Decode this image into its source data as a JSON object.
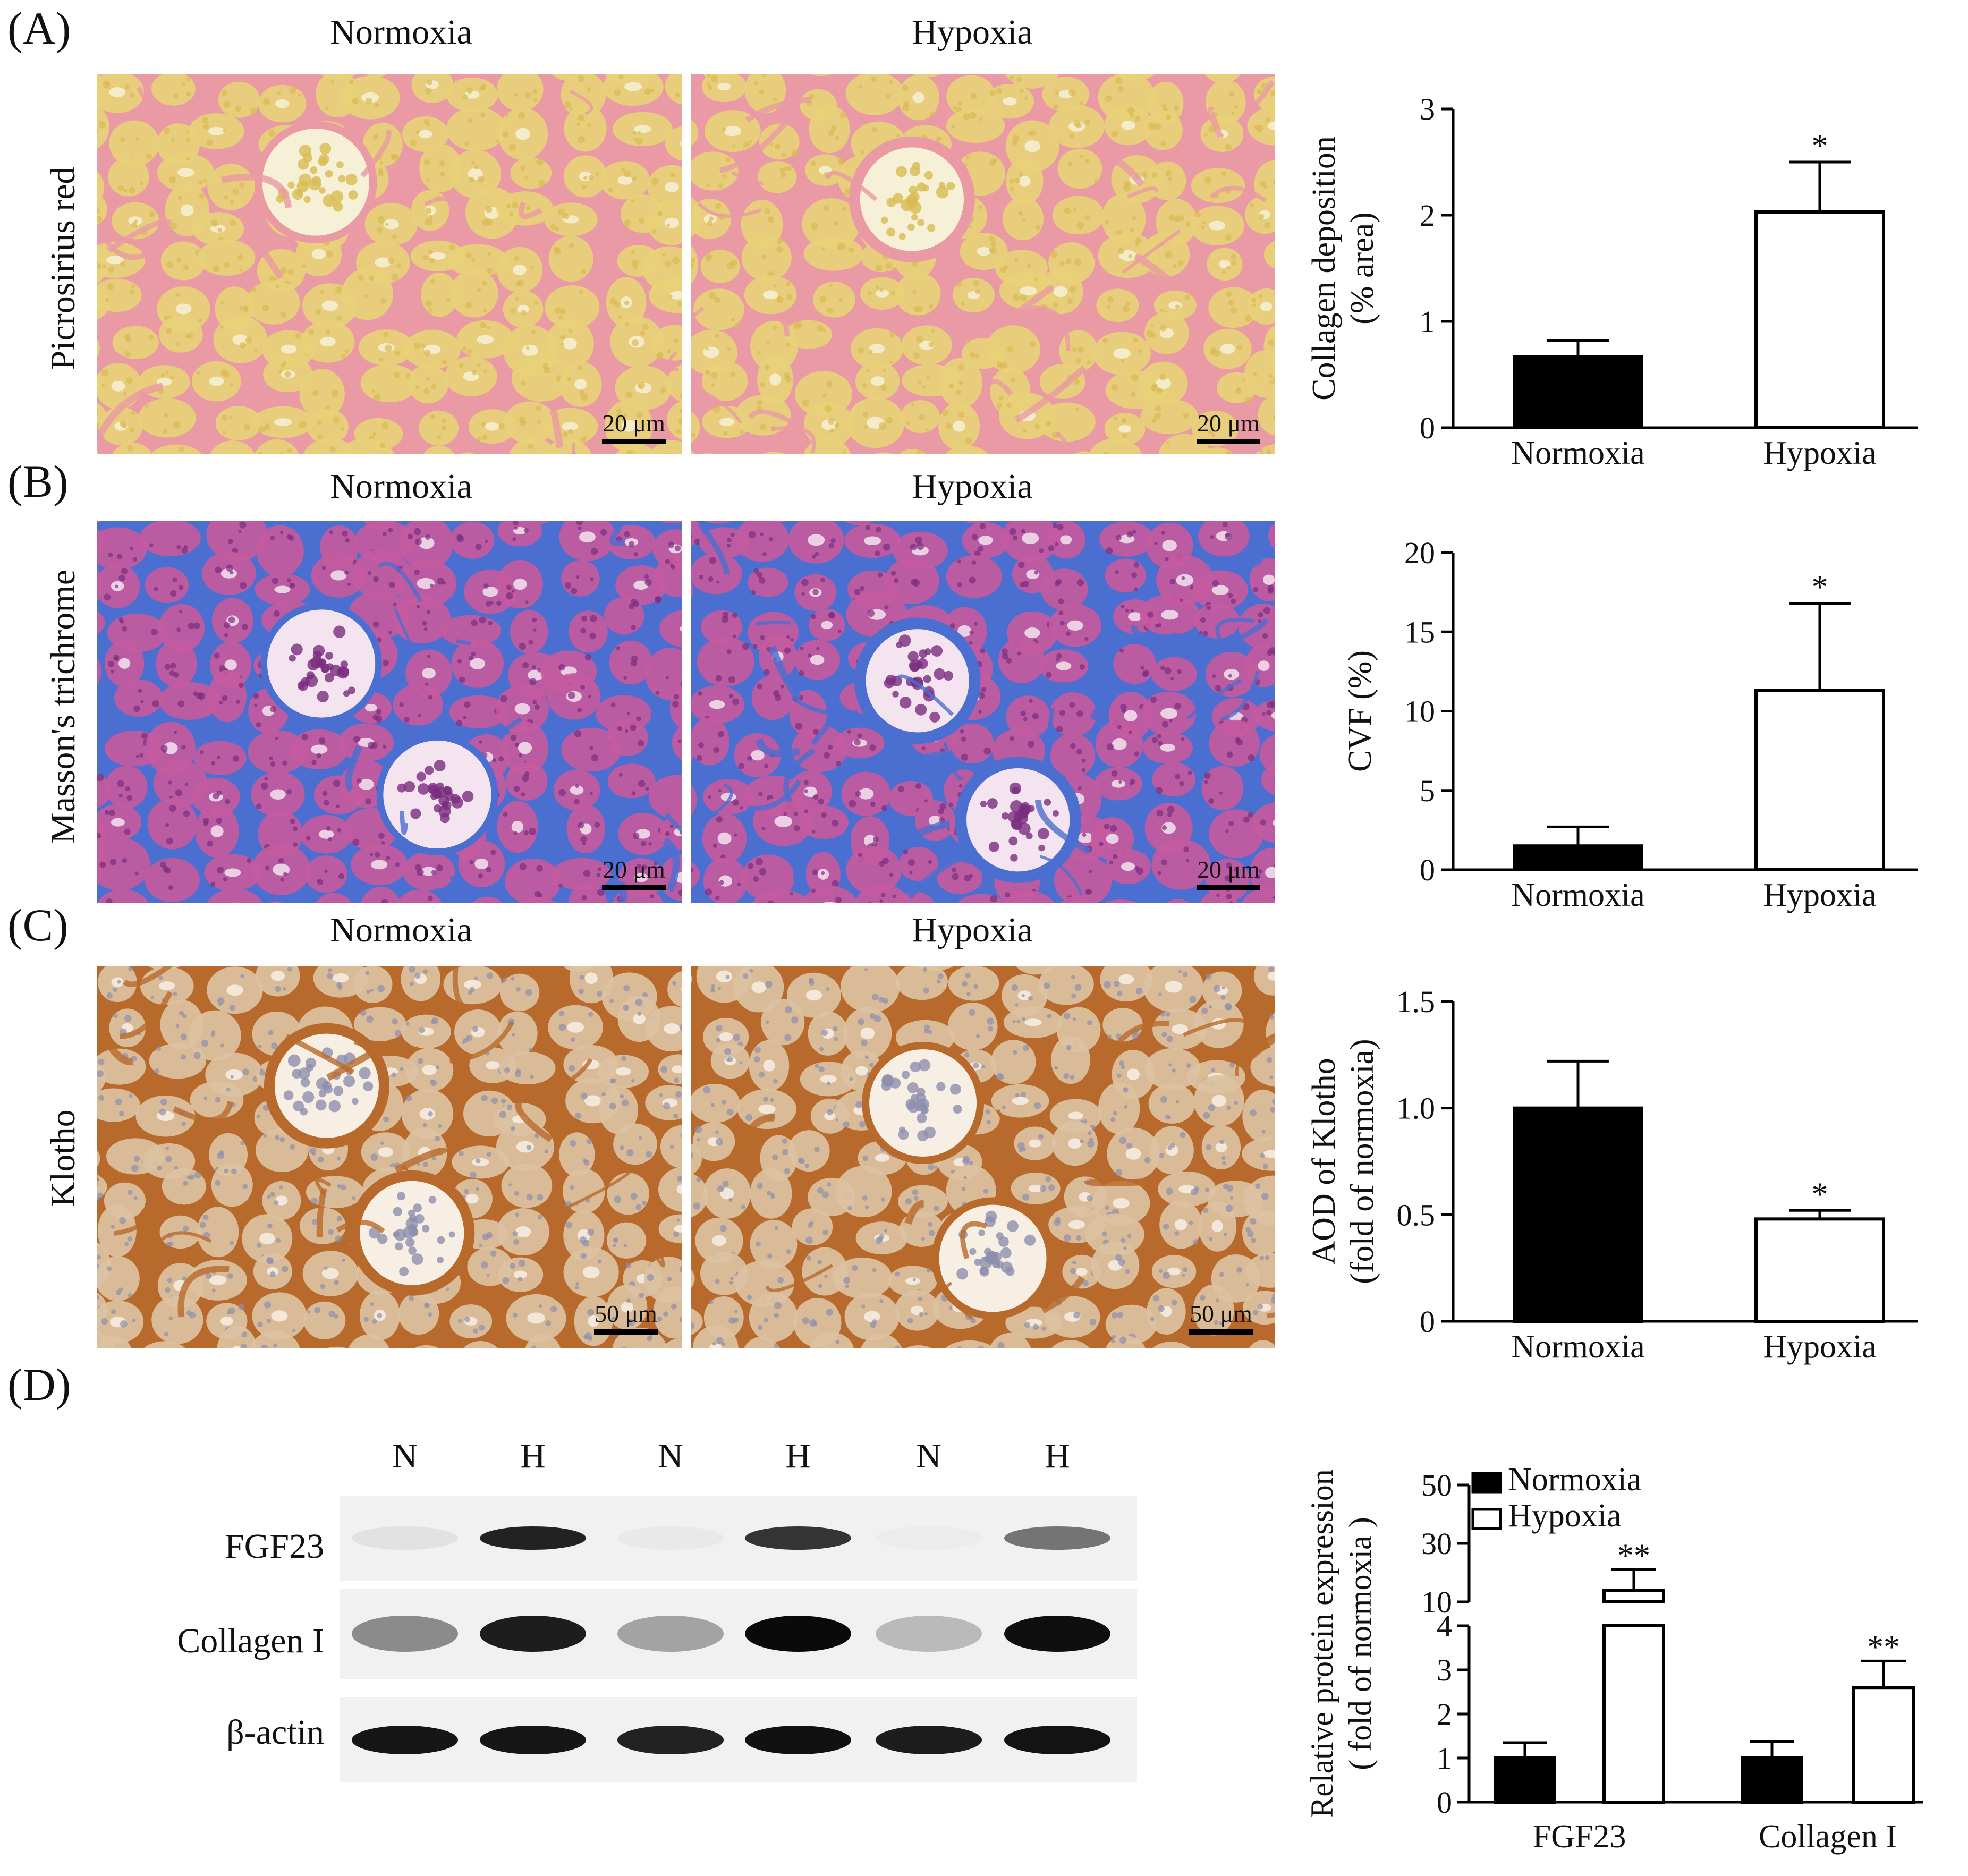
{
  "panels": [
    {
      "id": "A",
      "letter": "(A)",
      "col_normoxia": "Normoxia",
      "col_hypoxia": "Hypoxia",
      "row_label": "Picrosirius red",
      "stain_colors": {
        "base": "#e7d178",
        "fiber": "#e99aa4",
        "cell": "#d8bb52",
        "lumen": "#f6f0d6"
      },
      "scale_bar": "20 μm",
      "fiber_level": {
        "normoxia": 0.25,
        "hypoxia": 0.6
      }
    },
    {
      "id": "B",
      "letter": "(B)",
      "col_normoxia": "Normoxia",
      "col_hypoxia": "Hypoxia",
      "row_label": "Masson's trichrome",
      "stain_colors": {
        "base": "#c45a9e",
        "fiber": "#4b6fd0",
        "cell": "#7a2d7f",
        "lumen": "#f3e4f0"
      },
      "scale_bar": "20 μm",
      "fiber_level": {
        "normoxia": 0.15,
        "hypoxia": 0.65
      }
    },
    {
      "id": "C",
      "letter": "(C)",
      "col_normoxia": "Normoxia",
      "col_hypoxia": "Hypoxia",
      "row_label": "Klotho",
      "stain_colors": {
        "base": "#dcc2a2",
        "fiber": "#b86a2c",
        "cell": "#8d8fae",
        "lumen": "#f7efe4"
      },
      "scale_bar": "50 μm",
      "fiber_level": {
        "normoxia": 0.55,
        "hypoxia": 0.22
      }
    }
  ],
  "western": {
    "letter": "(D)",
    "lane_labels": [
      "N",
      "H",
      "N",
      "H",
      "N",
      "H"
    ],
    "rows": [
      {
        "label": "FGF23",
        "intensities": [
          0.08,
          0.9,
          0.05,
          0.82,
          0.04,
          0.55
        ]
      },
      {
        "label": "Collagen I",
        "intensities": [
          0.45,
          0.92,
          0.35,
          1.0,
          0.25,
          0.98
        ]
      },
      {
        "label": "β-actin",
        "intensities": [
          0.95,
          0.95,
          0.9,
          0.97,
          0.92,
          0.96
        ]
      }
    ]
  },
  "chart_data": [
    {
      "type": "bar",
      "categories": [
        "Normoxia",
        "Hypoxia"
      ],
      "values": [
        0.67,
        2.03
      ],
      "errors": [
        0.15,
        0.47
      ],
      "significance": [
        "",
        "*"
      ],
      "ylabel_lines": [
        "Collagen deposition",
        "(% area)"
      ],
      "ylim": [
        0,
        3
      ],
      "yticks": [
        "0",
        "1",
        "2",
        "3"
      ],
      "fills": [
        "#000000",
        "#ffffff"
      ]
    },
    {
      "type": "bar",
      "categories": [
        "Normoxia",
        "Hypoxia"
      ],
      "values": [
        1.5,
        11.3
      ],
      "errors": [
        1.2,
        5.5
      ],
      "significance": [
        "",
        "*"
      ],
      "ylabel_lines": [
        "CVF (%)"
      ],
      "ylim": [
        0,
        20
      ],
      "yticks": [
        "0",
        "5",
        "10",
        "15",
        "20"
      ],
      "fills": [
        "#000000",
        "#ffffff"
      ]
    },
    {
      "type": "bar",
      "categories": [
        "Normoxia",
        "Hypoxia"
      ],
      "values": [
        1.0,
        0.48
      ],
      "errors": [
        0.22,
        0.04
      ],
      "significance": [
        "",
        "*"
      ],
      "ylabel_lines": [
        "AOD of Klotho",
        "(fold of normoxia)"
      ],
      "ylim": [
        0,
        1.5
      ],
      "yticks": [
        "0",
        "0.5",
        "1.0",
        "1.5"
      ],
      "fills": [
        "#000000",
        "#ffffff"
      ]
    },
    {
      "type": "bar",
      "categories": [
        "FGF23",
        "Collagen I"
      ],
      "series": [
        {
          "name": "Normoxia",
          "values": [
            1.0,
            1.0
          ],
          "errors": [
            0.35,
            0.38
          ],
          "significance": [
            "",
            ""
          ],
          "fill": "#000000"
        },
        {
          "name": "Hypoxia",
          "values": [
            14.0,
            2.6
          ],
          "errors": [
            7.0,
            0.6
          ],
          "significance": [
            "**",
            "**"
          ],
          "fill": "#ffffff"
        }
      ],
      "ylabel_lines": [
        "Relative protein expression",
        "( fold of normoxia )"
      ],
      "broken_axis": {
        "lower": [
          0,
          4
        ],
        "upper": [
          10,
          50
        ]
      },
      "yticks_lower": [
        "0",
        "1",
        "2",
        "3",
        "4"
      ],
      "yticks_upper": [
        "10",
        "30",
        "50"
      ],
      "legend_position": "top-left"
    }
  ]
}
